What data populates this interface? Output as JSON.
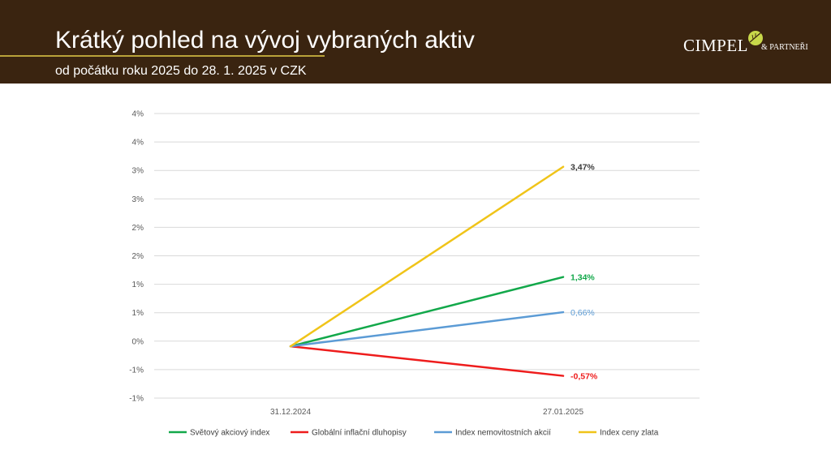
{
  "header": {
    "title": "Krátký pohled na vývoj vybraných aktiv",
    "subtitle": "od počátku roku 2025 do 28. 1. 2025 v CZK",
    "logo_main": "CIMPEL",
    "logo_sub": "& PARTNEŘI",
    "background_color": "#3a2410",
    "accent_color": "#b9a23a"
  },
  "chart_data": {
    "type": "line",
    "title": "",
    "xlabel": "",
    "ylabel": "",
    "x": [
      "31.12.2024",
      "27.01.2025"
    ],
    "y_tick_labels": [
      "-1%",
      "-1%",
      "0%",
      "1%",
      "1%",
      "2%",
      "2%",
      "3%",
      "3%",
      "4%",
      "4%"
    ],
    "ylim": [
      -1.0,
      4.5
    ],
    "grid": true,
    "legend_position": "bottom",
    "series": [
      {
        "name": "Světový akciový index",
        "values": [
          0,
          1.34
        ],
        "label": "1,34%",
        "color": "#12a84a",
        "label_color": "#12a84a"
      },
      {
        "name": "Globální inflační dluhopisy",
        "values": [
          0,
          -0.57
        ],
        "label": "-0,57%",
        "color": "#ee1c1c",
        "label_color": "#ee1c1c"
      },
      {
        "name": "Index nemovitostních akcií",
        "values": [
          0,
          0.66
        ],
        "label": "0,66%",
        "color": "#5b9bd5",
        "label_color": "#5b9bd5"
      },
      {
        "name": "Index ceny zlata",
        "values": [
          0,
          3.47
        ],
        "label": "3,47%",
        "color": "#f0c419",
        "label_color": "#3a3a3a"
      }
    ]
  }
}
